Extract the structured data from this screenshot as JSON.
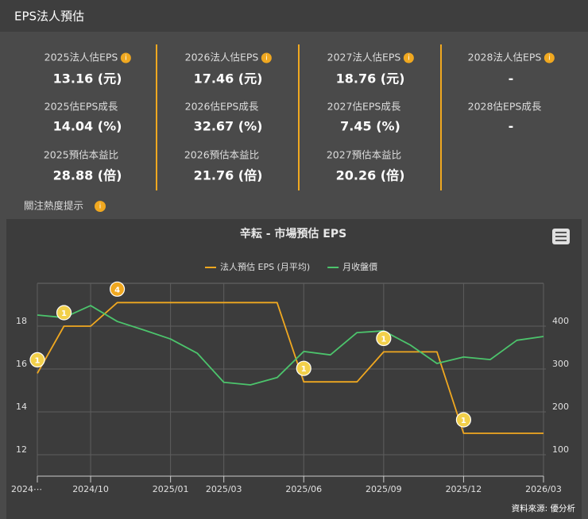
{
  "header": {
    "title": "EPS法人預估"
  },
  "stats": [
    [
      {
        "label": "2025法人估EPS",
        "value": "13.16 (元)"
      },
      {
        "label": "2025估EPS成長",
        "value": "14.04 (%)"
      },
      {
        "label": "2025預估本益比",
        "value": "28.88 (倍)"
      }
    ],
    [
      {
        "label": "2026法人估EPS",
        "value": "17.46 (元)"
      },
      {
        "label": "2026估EPS成長",
        "value": "32.67 (%)"
      },
      {
        "label": "2026預估本益比",
        "value": "21.76 (倍)"
      }
    ],
    [
      {
        "label": "2027法人估EPS",
        "value": "18.76 (元)"
      },
      {
        "label": "2027估EPS成長",
        "value": "7.45 (%)"
      },
      {
        "label": "2027預估本益比",
        "value": "20.26 (倍)"
      }
    ],
    [
      {
        "label": "2028法人估EPS",
        "value": "-"
      },
      {
        "label": "2028估EPS成長",
        "value": "-"
      }
    ]
  ],
  "heat_hint": "關注熱度提示",
  "chart_data": {
    "type": "line",
    "title": "辛耘 - 市場預估 EPS",
    "x": [
      "2024/08",
      "2024/09",
      "2024/10",
      "2024/11",
      "2024/12",
      "2025/01",
      "2025/02",
      "2025/03",
      "2025/04",
      "2025/05",
      "2025/06",
      "2025/07",
      "2025/08",
      "2025/09",
      "2025/10",
      "2025/11",
      "2025/12",
      "2026/01",
      "2026/02",
      "2026/03"
    ],
    "series": [
      {
        "name": "法人預估 EPS (月平均)",
        "color": "#f0a820",
        "values": [
          15.8,
          18.0,
          18.0,
          19.1,
          19.1,
          19.1,
          19.1,
          19.1,
          19.1,
          19.1,
          15.4,
          15.4,
          15.4,
          16.8,
          16.8,
          16.8,
          13.0,
          13.0,
          13.0,
          13.0
        ]
      },
      {
        "name": "月收盤價",
        "color": "#4cc46c",
        "axis": "y2",
        "values": [
          426,
          420,
          448,
          411,
          391,
          370,
          337,
          269,
          263,
          280,
          341,
          333,
          385,
          389,
          356,
          313,
          328,
          322,
          367,
          376
        ]
      }
    ],
    "ylim": [
      11,
      20
    ],
    "yticks": [
      12,
      14,
      16,
      18
    ],
    "y2lim": [
      50,
      500
    ],
    "y2ticks": [
      100,
      200,
      300,
      400
    ],
    "xticks": [
      {
        "value": "2024/08",
        "label": "2024⋯"
      },
      "2024/10",
      "2025/01",
      "2025/03",
      "2025/06",
      "2025/09",
      "2025/12",
      "2026/03"
    ],
    "events": [
      {
        "x": "2024/08",
        "label": "1",
        "color": "#f2d04a"
      },
      {
        "x": "2024/09",
        "label": "1",
        "color": "#f2d04a"
      },
      {
        "x": "2024/11",
        "label": "4",
        "color": "#f0a820"
      },
      {
        "x": "2025/06",
        "label": "1",
        "color": "#f2d04a"
      },
      {
        "x": "2025/09",
        "label": "1",
        "color": "#f2d04a"
      },
      {
        "x": "2025/12",
        "label": "1",
        "color": "#f2d04a"
      }
    ],
    "grid": true
  },
  "source": "資料來源: 優分析"
}
